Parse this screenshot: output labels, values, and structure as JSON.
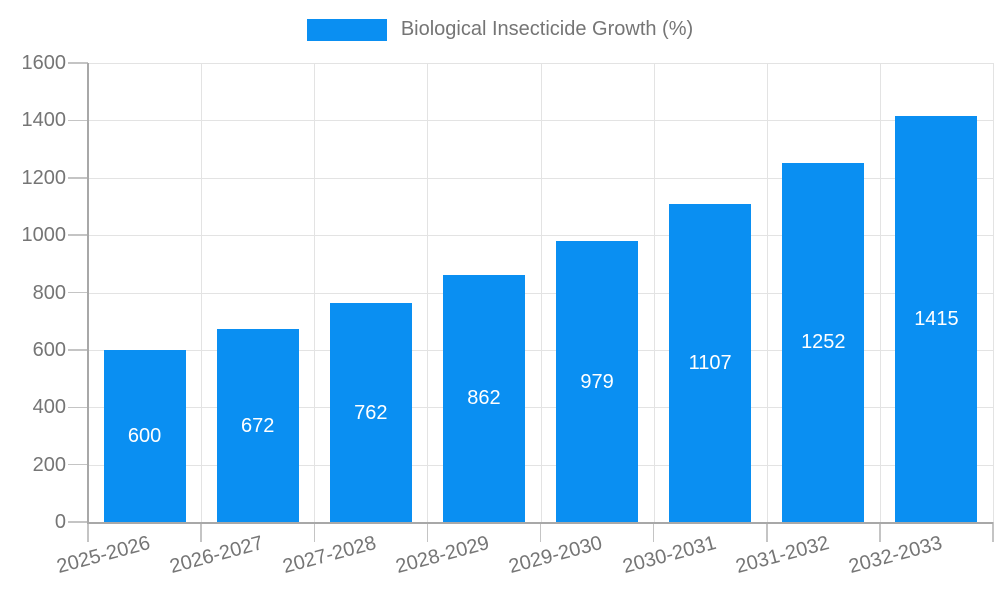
{
  "chart_data": {
    "type": "bar",
    "title": "Biological Insecticide Growth (%)",
    "categories": [
      "2025-2026",
      "2026-2027",
      "2027-2028",
      "2028-2029",
      "2029-2030",
      "2030-2031",
      "2031-2032",
      "2032-2033"
    ],
    "values": [
      600,
      672,
      762,
      862,
      979,
      1107,
      1252,
      1415
    ],
    "xlabel": "",
    "ylabel": "",
    "ylim": [
      0,
      1600
    ],
    "yticks": [
      0,
      200,
      400,
      600,
      800,
      1000,
      1200,
      1400,
      1600
    ],
    "grid": true,
    "legend_position": "top-center",
    "bar_color": "#0a8ff2",
    "value_label_color": "#ffffff",
    "axis_text_color": "#757575",
    "grid_color": "#e3e3e3",
    "axis_line_color": "#a8a8a8",
    "tick_color": "#c4c4c4",
    "x_label_rotation_deg": -15
  }
}
